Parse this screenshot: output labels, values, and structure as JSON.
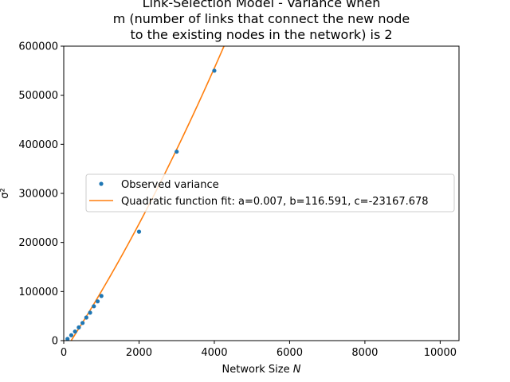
{
  "chart_data": {
    "type": "scatter",
    "title_lines": [
      "Link-Selection Model - Variance when",
      "m (number of links that connect the new node",
      "to the existing nodes in the network) is 2"
    ],
    "xlabel": "Network Size",
    "xlabel_symbol": "N",
    "ylabel": "σ²",
    "xlim": [
      0,
      10500
    ],
    "ylim": [
      0,
      600000
    ],
    "xticks": [
      0,
      2000,
      4000,
      6000,
      8000,
      10000
    ],
    "yticks": [
      0,
      100000,
      200000,
      300000,
      400000,
      500000,
      600000
    ],
    "series": [
      {
        "name": "Observed variance",
        "kind": "points",
        "color": "#1f77b4",
        "x": [
          100,
          200,
          300,
          400,
          500,
          600,
          700,
          800,
          900,
          1000,
          2000,
          3000,
          4000
        ],
        "y": [
          3500,
          11000,
          18500,
          27000,
          36000,
          47000,
          57000,
          70000,
          80000,
          91000,
          222000,
          385000,
          550000
        ]
      },
      {
        "name": "Quadratic function fit: a=0.007, b=116.591, c=-23167.678",
        "kind": "line",
        "color": "#ff7f0e",
        "coefficients": {
          "a": 0.007,
          "b": 116.591,
          "c": -23167.678
        }
      }
    ],
    "legend_position": "center-left",
    "grid": false
  }
}
